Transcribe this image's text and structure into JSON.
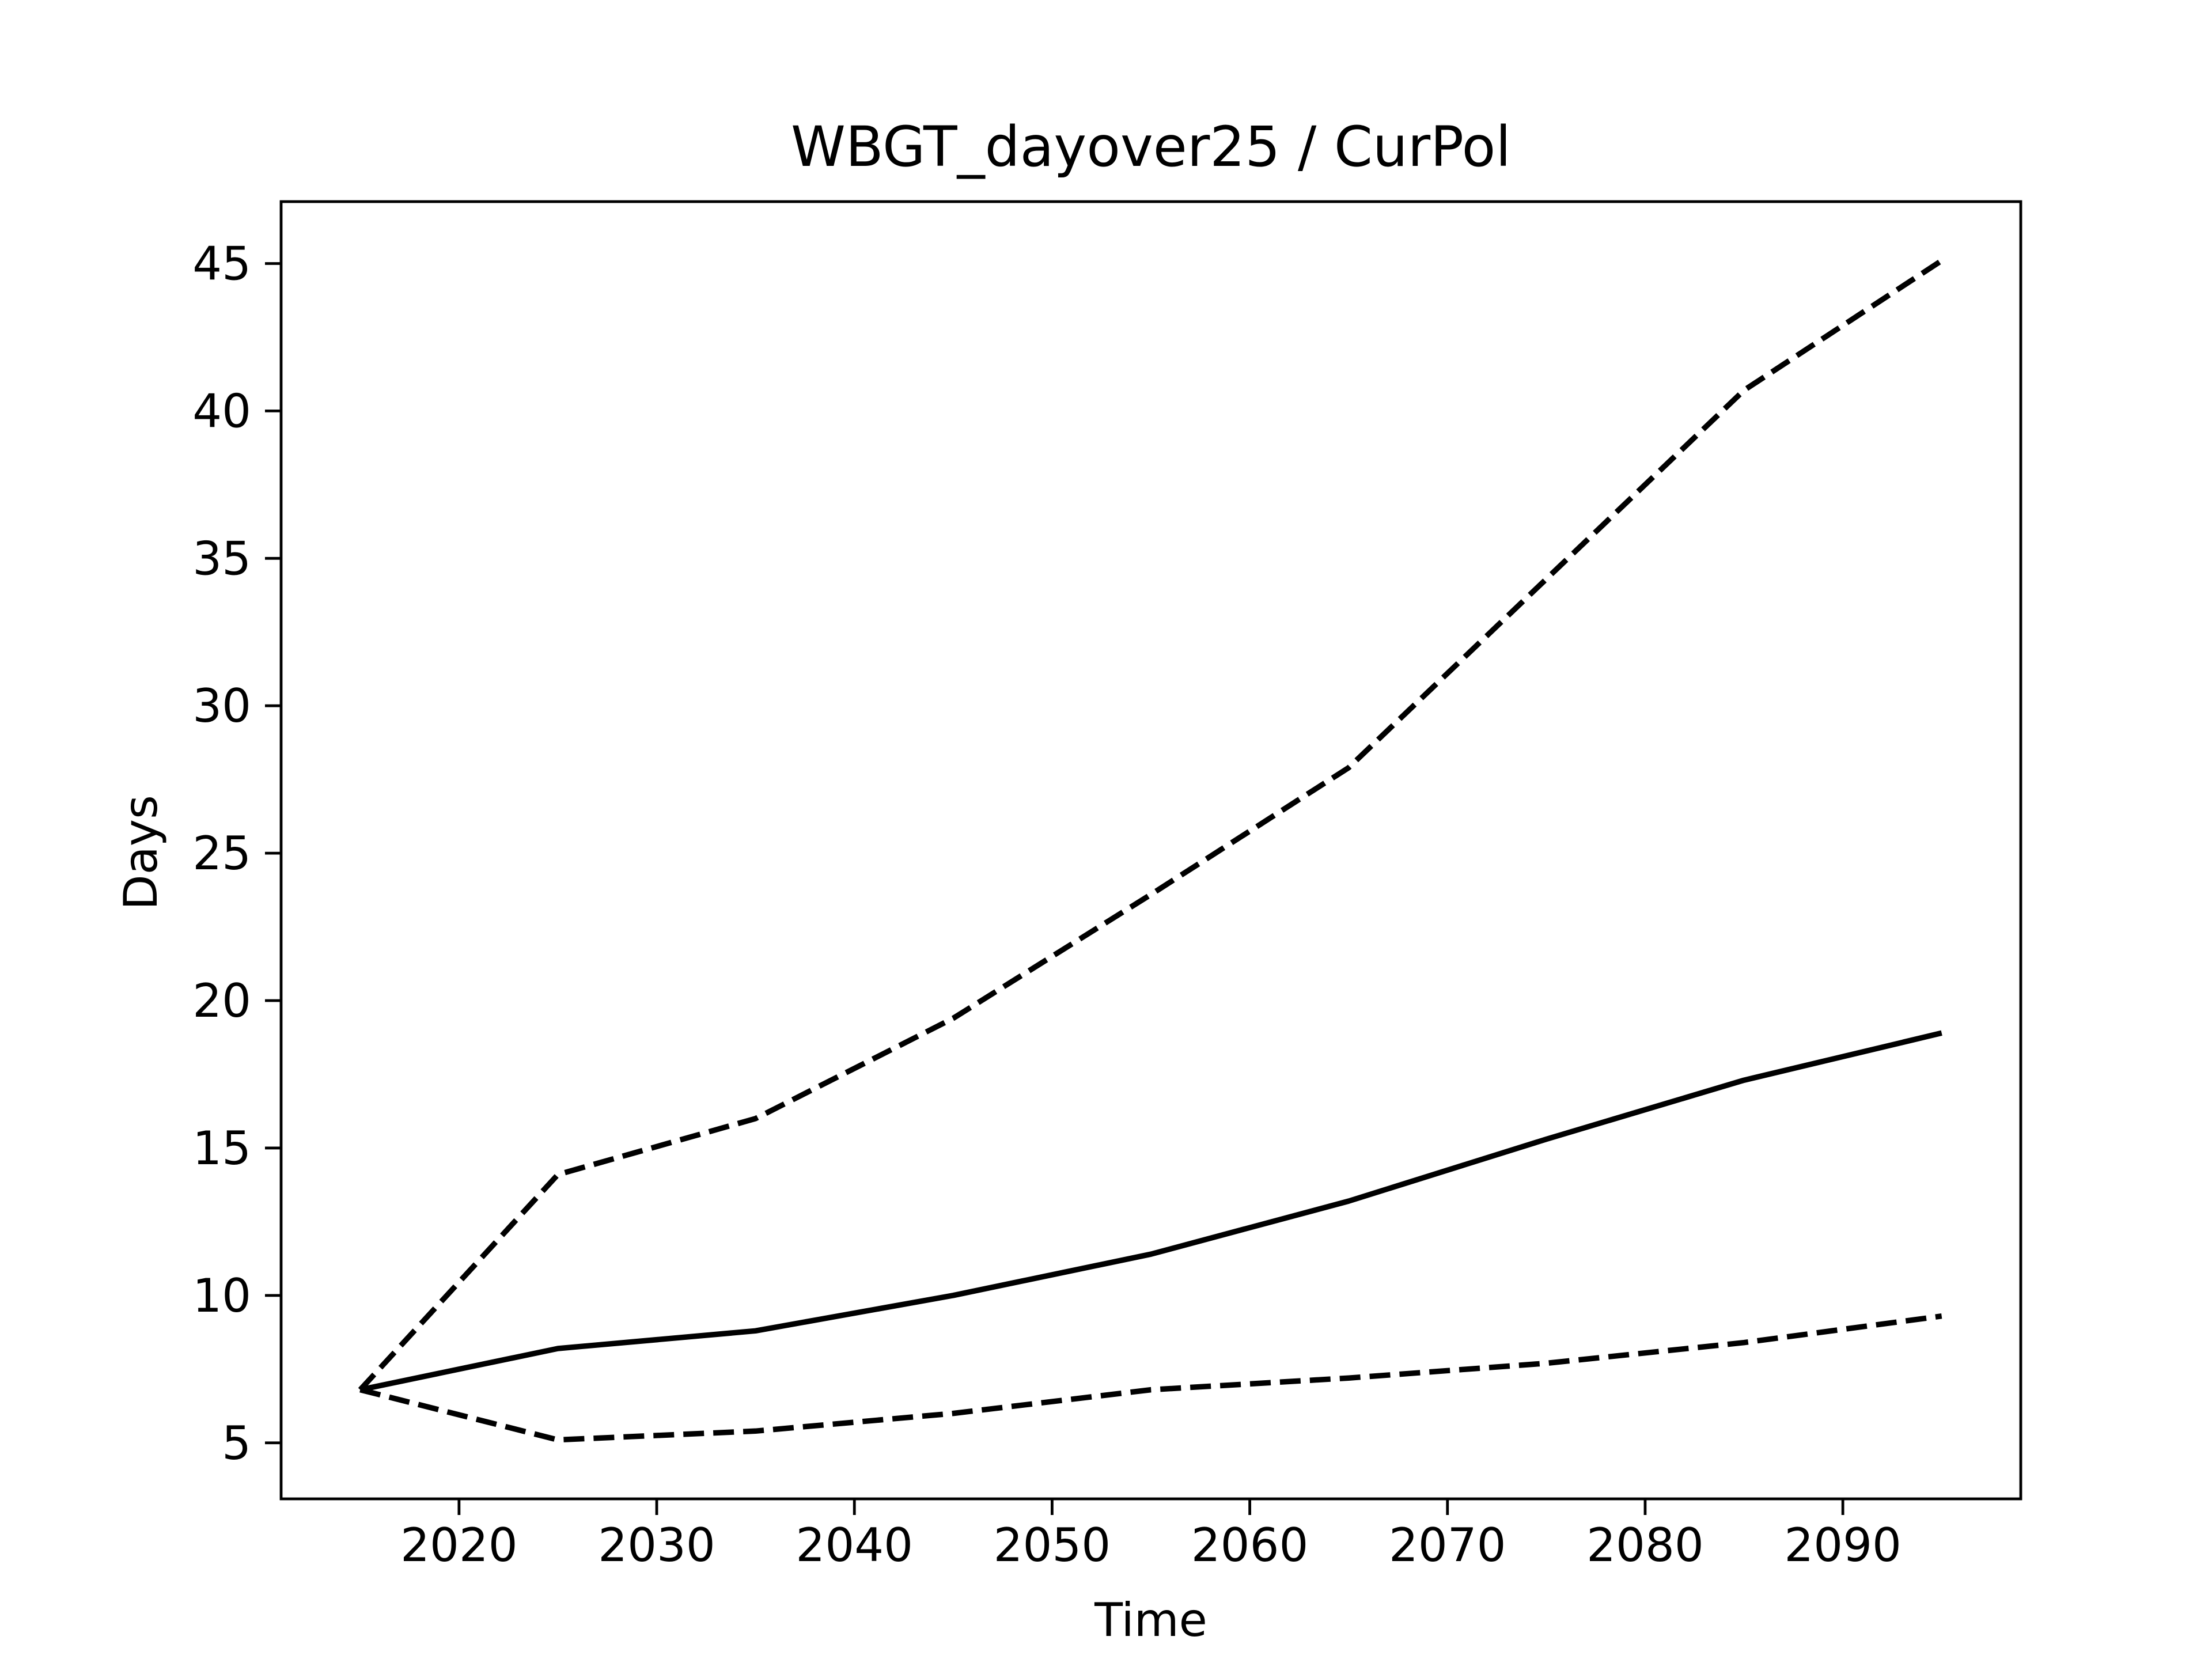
{
  "chart_data": {
    "type": "line",
    "title": "WBGT_dayover25 / CurPol",
    "xlabel": "Time",
    "ylabel": "Days",
    "xlim": [
      2011,
      2099
    ],
    "ylim": [
      3.1,
      47.1
    ],
    "xticks": [
      2020,
      2030,
      2040,
      2050,
      2060,
      2070,
      2080,
      2090
    ],
    "yticks": [
      5,
      10,
      15,
      20,
      25,
      30,
      35,
      40,
      45
    ],
    "grid": false,
    "legend": "none",
    "x": [
      2015,
      2025,
      2035,
      2045,
      2055,
      2065,
      2075,
      2085,
      2095
    ],
    "series": [
      {
        "style": "solid",
        "color": "#000000",
        "values": [
          6.8,
          8.2,
          8.8,
          10.0,
          11.4,
          13.2,
          15.3,
          17.3,
          18.9
        ]
      },
      {
        "style": "dashed",
        "color": "#000000",
        "values": [
          6.8,
          14.1,
          16.0,
          19.4,
          23.6,
          27.9,
          34.3,
          40.7,
          45.1
        ]
      },
      {
        "style": "dashed",
        "color": "#000000",
        "values": [
          6.8,
          5.1,
          5.4,
          6.0,
          6.8,
          7.2,
          7.7,
          8.4,
          9.3
        ]
      }
    ]
  }
}
